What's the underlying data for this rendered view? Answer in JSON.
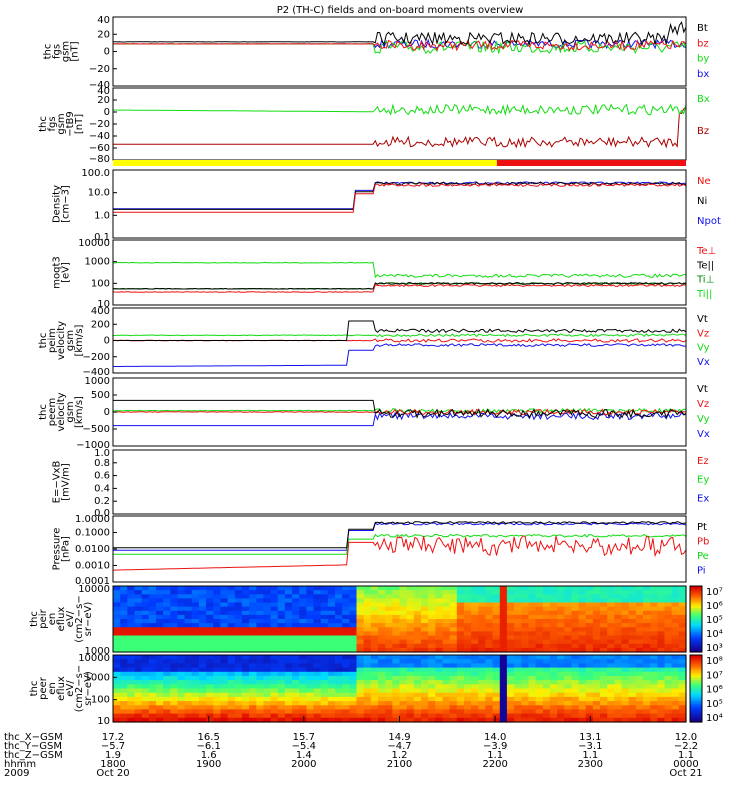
{
  "title": "P2 (TH-C) fields and on-board moments overview",
  "colors": {
    "black": "#000000",
    "red": "#ee1111",
    "green": "#11dd11",
    "blue": "#1111ee",
    "darkred": "#aa0000",
    "yellow": "#ffff00"
  },
  "chart_data": [
    {
      "id": "p1",
      "type": "line",
      "ylabel": [
        "thc",
        "fgs",
        "gsm",
        "[nT]"
      ],
      "yticks": [
        "40",
        "20",
        "0",
        "−20",
        "−40"
      ],
      "series": [
        {
          "name": "Bt",
          "color": "black"
        },
        {
          "name": "bz",
          "color": "red"
        },
        {
          "name": "by",
          "color": "green"
        },
        {
          "name": "bx",
          "color": "blue"
        }
      ]
    },
    {
      "id": "p2",
      "type": "line",
      "ylabel": [
        "thc",
        "fgs",
        "gsm",
        "−tB9",
        "[nT]"
      ],
      "yticks": [
        "40",
        "20",
        "0",
        "−20",
        "−40",
        "−60",
        "−80"
      ],
      "series": [
        {
          "name": "Bx",
          "color": "green"
        },
        {
          "name": "Bz",
          "color": "darkred"
        }
      ]
    },
    {
      "id": "bar",
      "type": "bar",
      "segments": [
        {
          "color": "yellow",
          "from": 0,
          "to": 0.67
        },
        {
          "color": "red",
          "from": 0.67,
          "to": 1
        }
      ]
    },
    {
      "id": "p3",
      "type": "line",
      "log": true,
      "ylabel": [
        "Density",
        "[cm−3]"
      ],
      "yticks": [
        "100.0",
        "10.0",
        "1.0",
        "0.1"
      ],
      "series": [
        {
          "name": "Ne",
          "color": "red"
        },
        {
          "name": "Ni",
          "color": "black"
        },
        {
          "name": "Npot",
          "color": "blue"
        }
      ]
    },
    {
      "id": "p4",
      "type": "line",
      "log": true,
      "ylabel": [
        "moqt3",
        "[eV]"
      ],
      "yticks": [
        "10000",
        "1000",
        "100",
        "10"
      ],
      "series": [
        {
          "name": "Te⊥",
          "color": "red"
        },
        {
          "name": "Te||",
          "color": "black"
        },
        {
          "name": "Ti⊥",
          "color": "darkgreen"
        },
        {
          "name": "Ti||",
          "color": "green"
        }
      ]
    },
    {
      "id": "p5",
      "type": "line",
      "ylabel": [
        "thc",
        "peim",
        "velocity",
        "gsm",
        "[km/s]"
      ],
      "yticks": [
        "400",
        "200",
        "0",
        "−200",
        "−400"
      ],
      "series": [
        {
          "name": "Vt",
          "color": "black"
        },
        {
          "name": "Vz",
          "color": "red"
        },
        {
          "name": "Vy",
          "color": "green"
        },
        {
          "name": "Vx",
          "color": "blue"
        }
      ]
    },
    {
      "id": "p6",
      "type": "line",
      "ylabel": [
        "thc",
        "peem",
        "velocity",
        "gsm",
        "[km/s]"
      ],
      "yticks": [
        "1000",
        "500",
        "0",
        "−500",
        "−1000"
      ],
      "series": [
        {
          "name": "Vt",
          "color": "black"
        },
        {
          "name": "Vz",
          "color": "red"
        },
        {
          "name": "Vy",
          "color": "green"
        },
        {
          "name": "Vx",
          "color": "blue"
        }
      ]
    },
    {
      "id": "p7",
      "type": "line",
      "ylabel": [
        "E=−VxB",
        "[mV/m]"
      ],
      "yticks": [
        "1.0",
        "0.8",
        "0.6",
        "0.4",
        "0.2",
        "0.0"
      ],
      "series": [
        {
          "name": "Ez",
          "color": "red"
        },
        {
          "name": "Ey",
          "color": "green"
        },
        {
          "name": "Ex",
          "color": "blue"
        }
      ]
    },
    {
      "id": "p8",
      "type": "line",
      "log": true,
      "ylabel": [
        "Pressure",
        "[nPa]"
      ],
      "yticks": [
        "1.0000",
        "0.1000",
        "0.0100",
        "0.0010",
        "0.0001"
      ],
      "series": [
        {
          "name": "Pt",
          "color": "black"
        },
        {
          "name": "Pb",
          "color": "red"
        },
        {
          "name": "Pe",
          "color": "green"
        },
        {
          "name": "Pi",
          "color": "blue"
        }
      ]
    },
    {
      "id": "p9",
      "type": "heatmap",
      "ylabel": [
        "thc",
        "peir",
        "en",
        "eflux",
        "eV/",
        "(cm2−s−",
        "sr−eV)"
      ],
      "yticks": [
        "10000",
        "1000"
      ],
      "cbar": [
        "10⁷",
        "10⁶",
        "10⁵",
        "10⁴",
        "10³"
      ]
    },
    {
      "id": "p10",
      "type": "heatmap",
      "ylabel": [
        "thc",
        "peer",
        "en",
        "eflux",
        "eV/",
        "(cm2−s−",
        "sr−eV)"
      ],
      "yticks": [
        "10000",
        "1000",
        "100",
        "10"
      ],
      "cbar": [
        "10⁸",
        "10⁷",
        "10⁶",
        "10⁵",
        "10⁴"
      ]
    }
  ],
  "xaxis": {
    "rows": [
      {
        "label": "thc_X−GSM",
        "values": [
          "17.2",
          "16.5",
          "15.7",
          "14.9",
          "14.0",
          "13.1",
          "12.0"
        ]
      },
      {
        "label": "thc_Y−GSM",
        "values": [
          "−5.7",
          "−6.1",
          "−5.4",
          "−4.7",
          "−3.9",
          "−3.1",
          "−2.2"
        ]
      },
      {
        "label": "thc_Z−GSM",
        "values": [
          "1.9",
          "1.6",
          "1.4",
          "1.2",
          "1.1",
          "1.1",
          "1.1"
        ]
      },
      {
        "label": "hhmm",
        "values": [
          "1800",
          "1900",
          "2000",
          "2100",
          "2200",
          "2300",
          "0000"
        ]
      },
      {
        "label": "2009",
        "values": [
          "Oct 20",
          "",
          "",
          "",
          "",
          "",
          "Oct 21"
        ]
      }
    ]
  }
}
